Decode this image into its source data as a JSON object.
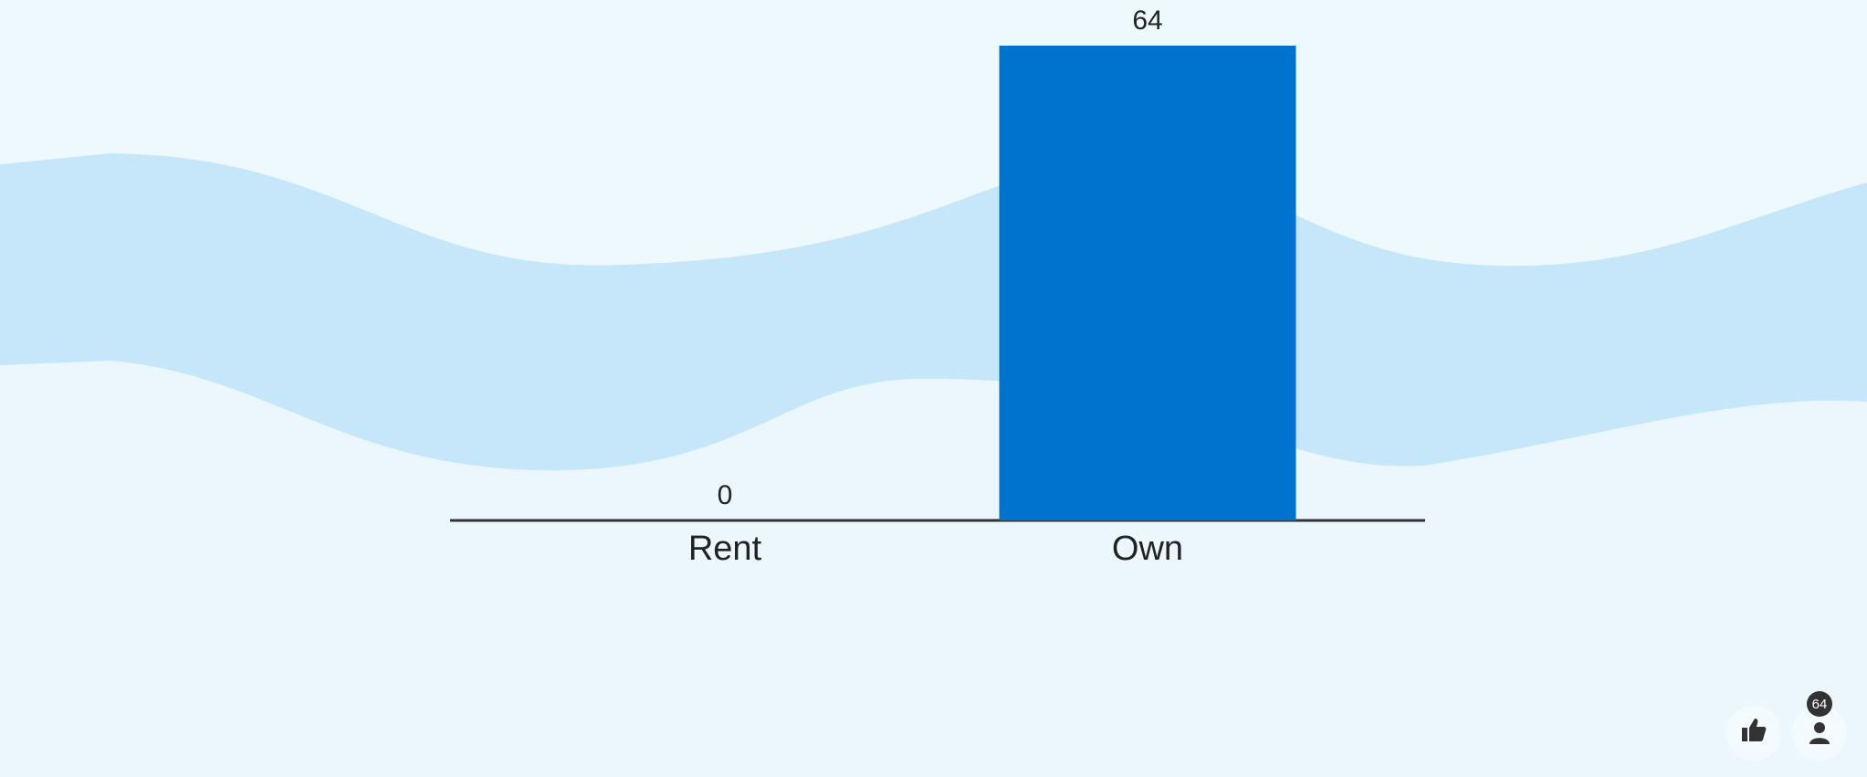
{
  "chart_data": {
    "type": "bar",
    "categories": [
      "Rent",
      "Own"
    ],
    "values": [
      0,
      64
    ],
    "color": "#0073cf"
  },
  "toolbar": {
    "participant_count": 64
  }
}
